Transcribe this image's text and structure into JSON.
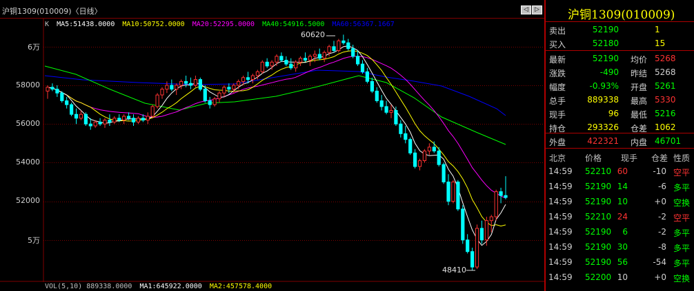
{
  "window": {
    "title": "沪铜1309(010009)〈日线〉",
    "nav": {
      "prev": "◁",
      "next": "▷"
    }
  },
  "indicators": {
    "k_label": "K",
    "ma": [
      {
        "text": "MA5:51438.0000",
        "color": "#ffffff"
      },
      {
        "text": "MA10:50752.0000",
        "color": "#ffff00"
      },
      {
        "text": "MA20:52295.0000",
        "color": "#ff00ff"
      },
      {
        "text": "MA40:54916.5000",
        "color": "#00ff00"
      },
      {
        "text": "MA60:56367.1667",
        "color": "#0000ff"
      }
    ],
    "vol": [
      {
        "text": "VOL(5,10) 889338.0000",
        "color": "#c0c0c0"
      },
      {
        "text": "MA1:645922.0000",
        "color": "#ffffff"
      },
      {
        "text": "MA2:457578.4000",
        "color": "#ffff00"
      }
    ]
  },
  "axis": {
    "y_labels": [
      "6万",
      "58000",
      "56000",
      "54000",
      "52000",
      "5万"
    ],
    "ylim": [
      48410,
      60620
    ]
  },
  "annotations": {
    "high": "60620",
    "low": "48410"
  },
  "quote": {
    "title": "沪铜1309(010009)",
    "rows": [
      {
        "l1": "卖出",
        "v1": "52190",
        "c1": "#00ff00",
        "l2": "",
        "v2": "1",
        "c2": "#ffff00"
      },
      {
        "l1": "买入",
        "v1": "52180",
        "c1": "#00ff00",
        "l2": "",
        "v2": "15",
        "c2": "#ffff00"
      },
      {
        "l1": "最新",
        "v1": "52190",
        "c1": "#00ff00",
        "l2": "均价",
        "v2": "5268",
        "c2": "#ff3232"
      },
      {
        "l1": "涨跌",
        "v1": "-490",
        "c1": "#00ff00",
        "l2": "昨结",
        "v2": "5268",
        "c2": "#d0d0d0"
      },
      {
        "l1": "幅度",
        "v1": "-0.93%",
        "c1": "#00ff00",
        "l2": "开盘",
        "v2": "5261",
        "c2": "#00ff00"
      },
      {
        "l1": "总手",
        "v1": "889338",
        "c1": "#ffff00",
        "l2": "最高",
        "v2": "5330",
        "c2": "#ff3232"
      },
      {
        "l1": "现手",
        "v1": "96",
        "c1": "#ffff00",
        "l2": "最低",
        "v2": "5216",
        "c2": "#00ff00"
      },
      {
        "l1": "持仓",
        "v1": "293326",
        "c1": "#ffff00",
        "l2": "仓差",
        "v2": "1062",
        "c2": "#ffff00"
      },
      {
        "l1": "外盘",
        "v1": "422321",
        "c1": "#ff3232",
        "l2": "内盘",
        "v2": "46701",
        "c2": "#00ff00"
      }
    ],
    "ticks_header": {
      "c1": "北京",
      "c2": "价格",
      "c3": "现手",
      "c4": "仓差",
      "c5": "性质"
    },
    "ticks": [
      {
        "time": "14:59",
        "price": "52210",
        "vol": "60",
        "vc": "#ff3232",
        "diff": "-10",
        "type": "空平",
        "tc": "#ff3232"
      },
      {
        "time": "14:59",
        "price": "52190",
        "vol": "14",
        "vc": "#00ff00",
        "diff": "-6",
        "type": "多平",
        "tc": "#00ff00"
      },
      {
        "time": "14:59",
        "price": "52190",
        "vol": "10",
        "vc": "#00ff00",
        "diff": "+0",
        "type": "空换",
        "tc": "#00ff00"
      },
      {
        "time": "14:59",
        "price": "52210",
        "vol": "24",
        "vc": "#ff3232",
        "diff": "-2",
        "type": "空平",
        "tc": "#ff3232"
      },
      {
        "time": "14:59",
        "price": "52190",
        "vol": "6",
        "vc": "#00ff00",
        "diff": "-2",
        "type": "多平",
        "tc": "#00ff00"
      },
      {
        "time": "14:59",
        "price": "52190",
        "vol": "30",
        "vc": "#00ff00",
        "diff": "-8",
        "type": "多平",
        "tc": "#00ff00"
      },
      {
        "time": "14:59",
        "price": "52190",
        "vol": "56",
        "vc": "#00ff00",
        "diff": "-54",
        "type": "多平",
        "tc": "#00ff00"
      },
      {
        "time": "14:59",
        "price": "52200",
        "vol": "10",
        "vc": "#d0d0d0",
        "diff": "+0",
        "type": "空换",
        "tc": "#00ff00"
      }
    ]
  },
  "colors": {
    "up": "#ff3232",
    "down": "#00ffff",
    "grid": "#800000",
    "ma5": "#ffffff",
    "ma10": "#ffff00",
    "ma20": "#ff00ff",
    "ma40": "#00ff00",
    "ma60": "#0000ff"
  },
  "chart_data": {
    "type": "candlestick",
    "candles": [
      [
        57700,
        58000,
        57300,
        57900
      ],
      [
        57900,
        58100,
        57700,
        57800
      ],
      [
        57800,
        58000,
        57400,
        57600
      ],
      [
        57600,
        57700,
        57100,
        57200
      ],
      [
        57200,
        57400,
        56800,
        57000
      ],
      [
        57000,
        57100,
        56400,
        56500
      ],
      [
        56500,
        56800,
        56000,
        56300
      ],
      [
        56300,
        56700,
        56200,
        56500
      ],
      [
        56500,
        56600,
        55900,
        56000
      ],
      [
        56000,
        56300,
        55700,
        55900
      ],
      [
        55900,
        56200,
        55800,
        56100
      ],
      [
        56100,
        56300,
        55900,
        56000
      ],
      [
        56000,
        56300,
        55800,
        56200
      ],
      [
        56200,
        56500,
        55900,
        56100
      ],
      [
        56100,
        56400,
        56000,
        56300
      ],
      [
        56300,
        56500,
        56100,
        56200
      ],
      [
        56200,
        56500,
        56000,
        56400
      ],
      [
        56400,
        56600,
        56200,
        56300
      ],
      [
        56300,
        56500,
        55900,
        56100
      ],
      [
        56100,
        56400,
        56000,
        56300
      ],
      [
        56300,
        56500,
        56100,
        56200
      ],
      [
        56200,
        56600,
        56000,
        56400
      ],
      [
        56400,
        57000,
        56300,
        56900
      ],
      [
        56900,
        57600,
        56800,
        57500
      ],
      [
        57500,
        57900,
        57300,
        57800
      ],
      [
        57800,
        58200,
        57600,
        58000
      ],
      [
        58000,
        58300,
        57700,
        57800
      ],
      [
        57800,
        58100,
        57500,
        58000
      ],
      [
        58000,
        58300,
        57800,
        58200
      ],
      [
        58200,
        58500,
        57900,
        58100
      ],
      [
        58100,
        58400,
        57800,
        58000
      ],
      [
        58000,
        58500,
        57900,
        58300
      ],
      [
        58300,
        58400,
        57700,
        57800
      ],
      [
        57800,
        58000,
        57100,
        57200
      ],
      [
        57200,
        57400,
        56800,
        57000
      ],
      [
        57000,
        57400,
        56900,
        57300
      ],
      [
        57300,
        57700,
        57100,
        57600
      ],
      [
        57600,
        58000,
        57400,
        57900
      ],
      [
        57900,
        58100,
        57600,
        57800
      ],
      [
        57800,
        58100,
        57600,
        58000
      ],
      [
        58000,
        58300,
        57800,
        58200
      ],
      [
        58200,
        58500,
        58000,
        58400
      ],
      [
        58400,
        58700,
        58100,
        58300
      ],
      [
        58300,
        58600,
        58100,
        58500
      ],
      [
        58500,
        58800,
        58300,
        58700
      ],
      [
        58700,
        59300,
        58600,
        59200
      ],
      [
        59200,
        59400,
        58900,
        59000
      ],
      [
        59000,
        59300,
        58800,
        59200
      ],
      [
        59200,
        59600,
        59000,
        59500
      ],
      [
        59500,
        59700,
        59200,
        59300
      ],
      [
        59300,
        59500,
        59000,
        59100
      ],
      [
        59100,
        59400,
        58800,
        58900
      ],
      [
        58900,
        59300,
        58700,
        59200
      ],
      [
        59200,
        59500,
        59000,
        59400
      ],
      [
        59400,
        59700,
        59200,
        59300
      ],
      [
        59300,
        59600,
        59000,
        59500
      ],
      [
        59500,
        59800,
        59200,
        59600
      ],
      [
        59600,
        59900,
        59300,
        59400
      ],
      [
        59400,
        59800,
        59200,
        59700
      ],
      [
        59700,
        60100,
        59500,
        60000
      ],
      [
        60000,
        60300,
        59700,
        59800
      ],
      [
        59800,
        60400,
        59700,
        60300
      ],
      [
        60300,
        60620,
        60100,
        60200
      ],
      [
        60200,
        60400,
        59800,
        59900
      ],
      [
        59900,
        60100,
        59400,
        59500
      ],
      [
        59500,
        59800,
        59000,
        59100
      ],
      [
        59100,
        59300,
        58600,
        58700
      ],
      [
        58700,
        58900,
        58100,
        58200
      ],
      [
        58200,
        58400,
        57600,
        57700
      ],
      [
        57700,
        57900,
        57100,
        57200
      ],
      [
        57200,
        57500,
        56700,
        56900
      ],
      [
        56900,
        57200,
        56500,
        56600
      ],
      [
        56600,
        57000,
        56300,
        56700
      ],
      [
        56700,
        56900,
        55900,
        56000
      ],
      [
        56000,
        56200,
        55300,
        55500
      ],
      [
        55500,
        55900,
        55000,
        55200
      ],
      [
        55200,
        55300,
        54400,
        54500
      ],
      [
        54500,
        54700,
        53700,
        53800
      ],
      [
        53800,
        54200,
        53600,
        54100
      ],
      [
        54100,
        54700,
        54000,
        54600
      ],
      [
        54600,
        55000,
        54400,
        54800
      ],
      [
        54800,
        55100,
        54500,
        54600
      ],
      [
        54600,
        54800,
        53800,
        53900
      ],
      [
        53900,
        54000,
        52900,
        53000
      ],
      [
        53000,
        53400,
        51800,
        52000
      ],
      [
        52000,
        53100,
        51900,
        53000
      ],
      [
        53000,
        53100,
        51500,
        51600
      ],
      [
        51600,
        51800,
        49800,
        50000
      ],
      [
        50000,
        50300,
        49300,
        49400
      ],
      [
        49400,
        49600,
        48410,
        48600
      ],
      [
        48600,
        50800,
        48500,
        50600
      ],
      [
        50600,
        51000,
        49800,
        50000
      ],
      [
        50000,
        51200,
        49700,
        51000
      ],
      [
        51000,
        51300,
        50400,
        51200
      ],
      [
        51200,
        52600,
        51000,
        52500
      ],
      [
        52500,
        52700,
        51900,
        52300
      ],
      [
        52300,
        53300,
        52100,
        52200
      ]
    ],
    "volume_ma": {
      "MA1": 645922.0,
      "MA2": 457578.4
    }
  }
}
